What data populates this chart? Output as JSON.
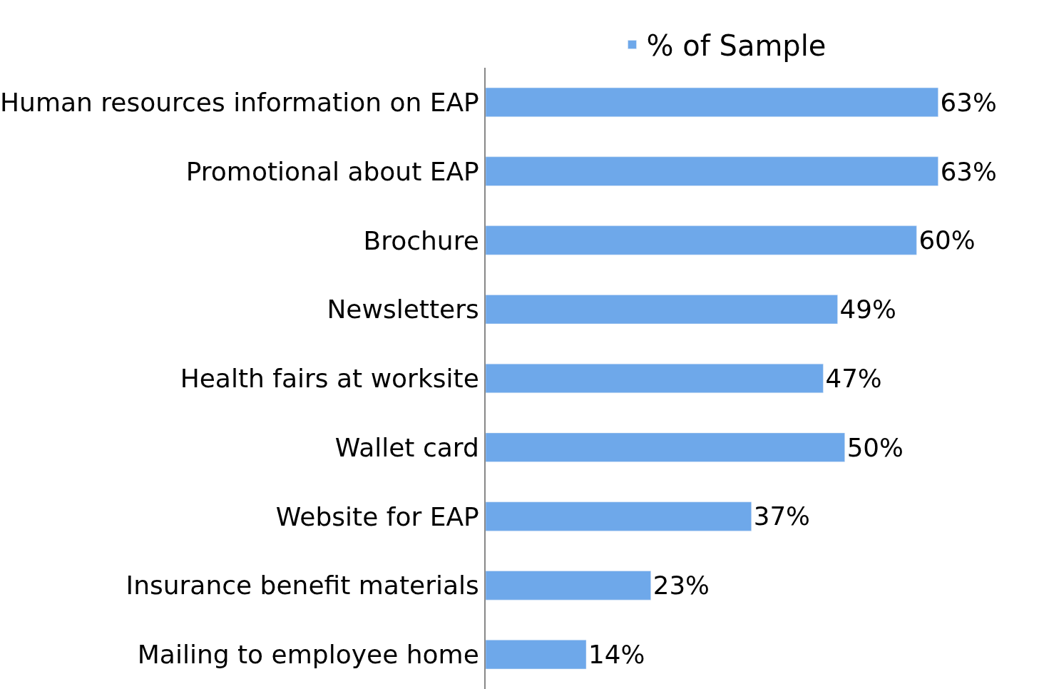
{
  "chart_data": {
    "type": "bar",
    "orientation": "horizontal",
    "categories": [
      "Human resources information on EAP",
      "Promotional about EAP",
      "Brochure",
      "Newsletters",
      "Health fairs at worksite",
      "Wallet card",
      "Website for EAP",
      "Insurance benefit materials",
      "Mailing to employee home"
    ],
    "series": [
      {
        "name": "% of Sample",
        "color": "#6ea8ea",
        "values": [
          63,
          63,
          60,
          49,
          47,
          50,
          37,
          23,
          14
        ],
        "value_labels": [
          "63%",
          "63%",
          "60%",
          "49%",
          "47%",
          "50%",
          "37%",
          "23%",
          "14%"
        ]
      }
    ],
    "tick_labels": "y",
    "legend": "top"
  }
}
